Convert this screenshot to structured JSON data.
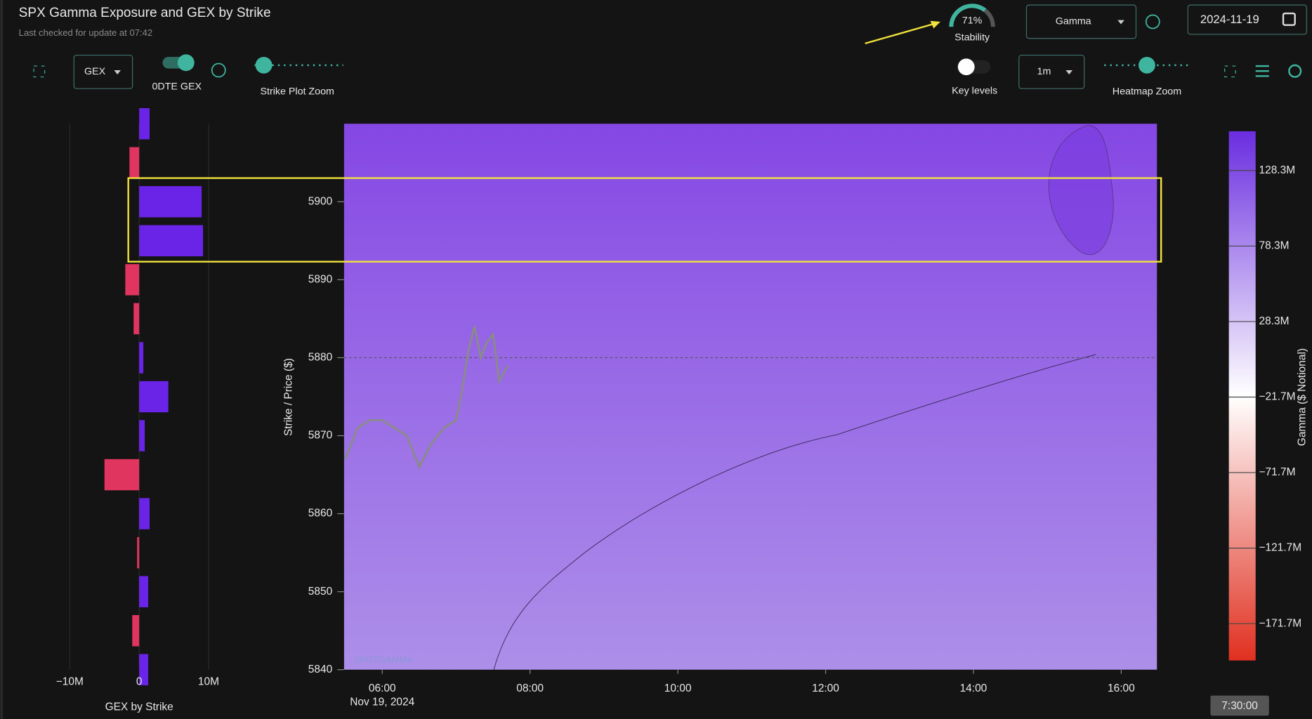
{
  "header": {
    "title": "SPX Gamma Exposure and GEX by Strike",
    "subtitle": "Last checked for update at 07:42"
  },
  "controls": {
    "stability": {
      "value": 71,
      "label": "71%"
    },
    "stability_caption": "Stability",
    "greek_select": "Gamma",
    "date": "2024-11-19",
    "gex_select": "GEX",
    "odte_label": "0DTE GEX",
    "strike_zoom_label": "Strike Plot Zoom",
    "key_levels_label": "Key levels",
    "interval_select": "1m",
    "heatmap_zoom_label": "Heatmap Zoom",
    "time_badge": "7:30:00"
  },
  "chart_data": [
    {
      "type": "hbar",
      "xlabel": "GEX by Strike",
      "categories": [
        5910,
        5905,
        5900,
        5895,
        5890,
        5885,
        5880,
        5875,
        5870,
        5865,
        5860,
        5855,
        5850,
        5845,
        5840
      ],
      "values": [
        1500000,
        -1400000,
        9000000,
        9200000,
        -2000000,
        -800000,
        600000,
        4200000,
        800000,
        -5000000,
        1500000,
        -300000,
        1300000,
        -1000000,
        1300000
      ],
      "positive_color": "#6a24e8",
      "negative_color": "#e0355f",
      "xlim": [
        -20000000,
        20000000
      ],
      "xticks": [
        {
          "value": -10000000,
          "label": "−10M"
        },
        0,
        {
          "value": 10000000,
          "label": "10M"
        }
      ],
      "ylim": [
        5840,
        5910
      ]
    },
    {
      "type": "heatmap",
      "ylabel": "Strike / Price ($)",
      "x_date_label": "Nov 19, 2024",
      "watermark": "SPOTGAMMA",
      "xlim": [
        "05:29",
        "16:29"
      ],
      "xticks": [
        "06:00",
        "08:00",
        "10:00",
        "12:00",
        "14:00",
        "16:00"
      ],
      "ylim": [
        5840,
        5910
      ],
      "yticks": [
        5840,
        5850,
        5860,
        5870,
        5880,
        5890,
        5900
      ],
      "x": [
        "05:30",
        "05:40",
        "05:50",
        "06:00",
        "06:10",
        "06:20",
        "06:30",
        "06:40",
        "06:50",
        "07:00",
        "07:05",
        "07:10",
        "07:15",
        "07:20",
        "07:25",
        "07:30",
        "07:35",
        "07:42"
      ],
      "values": [
        5867,
        5871,
        5872,
        5872,
        5871,
        5870,
        5866,
        5869,
        5871,
        5872,
        5876,
        5881,
        5884,
        5880,
        5882,
        5883,
        5877,
        5879
      ],
      "line_color": "#8a8a8a",
      "colorbar_label": "Gamma ($ Notional)",
      "clim": [
        -196100000,
        154300000
      ],
      "cticks": [
        {
          "value": 128300000,
          "label": "128.3M"
        },
        {
          "value": 78300000,
          "label": "78.3M"
        },
        {
          "value": 28300000,
          "label": "28.3M"
        },
        {
          "value": -21700000,
          "label": "−21.7M"
        },
        {
          "value": -71700000,
          "label": "−71.7M"
        },
        {
          "value": -121700000,
          "label": "−121.7M"
        },
        {
          "value": -171700000,
          "label": "−171.7M"
        }
      ]
    }
  ]
}
